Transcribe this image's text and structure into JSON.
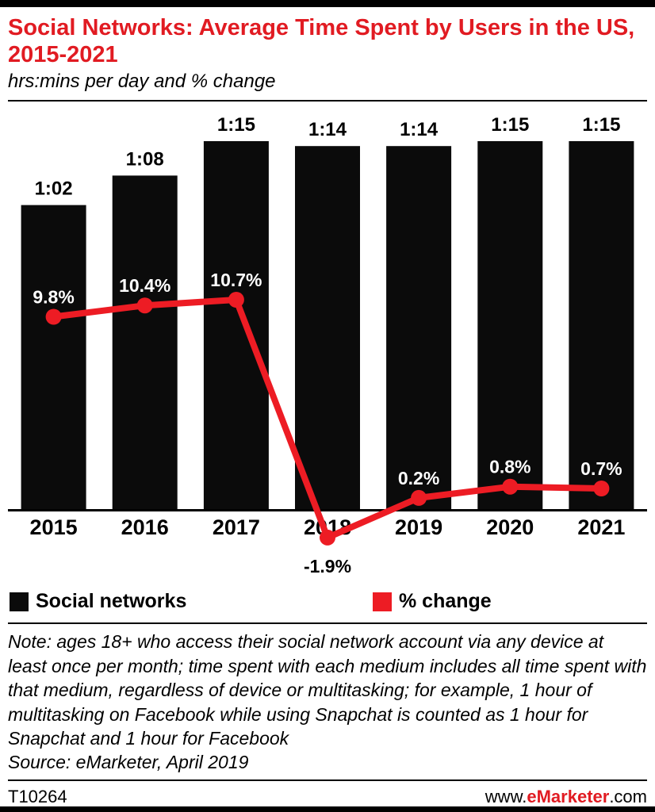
{
  "header": {
    "title": "Social Networks: Average Time Spent by Users in the US, 2015-2021",
    "subtitle": "hrs:mins per day and % change"
  },
  "chart_data": {
    "type": "bar",
    "title": "Social Networks: Average Time Spent by Users in the US, 2015-2021",
    "subtitle": "hrs:mins per day and % change",
    "categories": [
      "2015",
      "2016",
      "2017",
      "2018",
      "2019",
      "2020",
      "2021"
    ],
    "series": [
      {
        "name": "Social networks",
        "type": "bar",
        "unit": "hrs:mins per day",
        "labels": [
          "1:02",
          "1:08",
          "1:15",
          "1:14",
          "1:14",
          "1:15",
          "1:15"
        ],
        "values_minutes": [
          62,
          68,
          75,
          74,
          74,
          75,
          75
        ],
        "color": "#0b0b0b"
      },
      {
        "name": "% change",
        "type": "line",
        "unit": "% change",
        "labels": [
          "9.8%",
          "10.4%",
          "10.7%",
          "-1.9%",
          "0.2%",
          "0.8%",
          "0.7%"
        ],
        "values": [
          9.8,
          10.4,
          10.7,
          -1.9,
          0.2,
          0.8,
          0.7
        ],
        "color": "#ed1c24"
      }
    ],
    "grid": false,
    "legend_position": "bottom"
  },
  "legend": {
    "items": [
      {
        "label": "Social networks",
        "color": "#0b0b0b"
      },
      {
        "label": "% change",
        "color": "#ed1c24"
      }
    ]
  },
  "note": "Note: ages 18+ who access their social network account via any device at least once per month; time spent with each medium includes all time spent with that medium, regardless of device or multitasking; for example, 1 hour of multitasking on Facebook while using Snapchat is counted as 1 hour for Snapchat and 1 hour for Facebook",
  "source": "Source: eMarketer, April 2019",
  "footer": {
    "chart_id": "T10264",
    "website_prefix": "www.",
    "website_brand": "eMarketer",
    "website_suffix": ".com"
  },
  "colors": {
    "accent": "#ed1c24",
    "bar": "#0b0b0b",
    "title": "#e11b22"
  }
}
